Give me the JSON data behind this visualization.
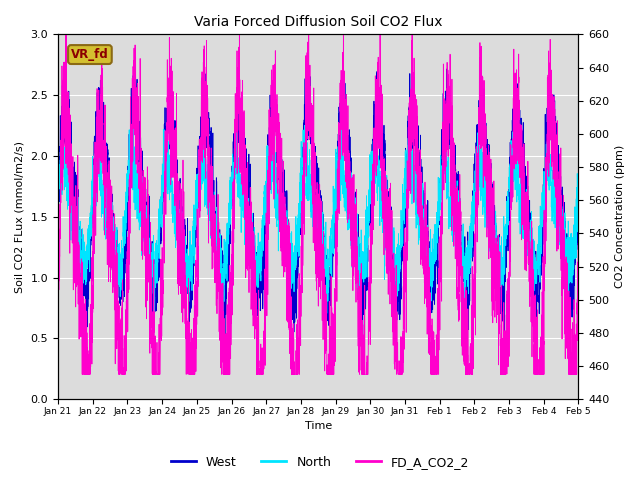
{
  "title": "Varia Forced Diffusion Soil CO2 Flux",
  "xlabel": "Time",
  "ylabel_left": "Soil CO2 FLux (mmol/m2/s)",
  "ylabel_right": "CO2 Concentration (ppm)",
  "ylim_left": [
    0.0,
    3.0
  ],
  "ylim_right": [
    440,
    660
  ],
  "bg_color": "#dcdcdc",
  "fig_color": "#ffffff",
  "west_color": "#0000cc",
  "north_color": "#00e5ff",
  "co2_color": "#ff00cc",
  "legend_labels": [
    "West",
    "North",
    "FD_A_CO2_2"
  ],
  "annotation_text": "VR_fd",
  "annotation_color": "#8b0000",
  "annotation_bg": "#d4c030",
  "annotation_border": "#8b6914",
  "x_tick_labels": [
    "Jan 21",
    "Jan 22",
    "Jan 23",
    "Jan 24",
    "Jan 25",
    "Jan 26",
    "Jan 27",
    "Jan 28",
    "Jan 29",
    "Jan 30",
    "Jan 31",
    "Feb 1",
    "Feb 2",
    "Feb 3",
    "Feb 4",
    "Feb 5"
  ],
  "num_points": 5040,
  "seed": 7
}
